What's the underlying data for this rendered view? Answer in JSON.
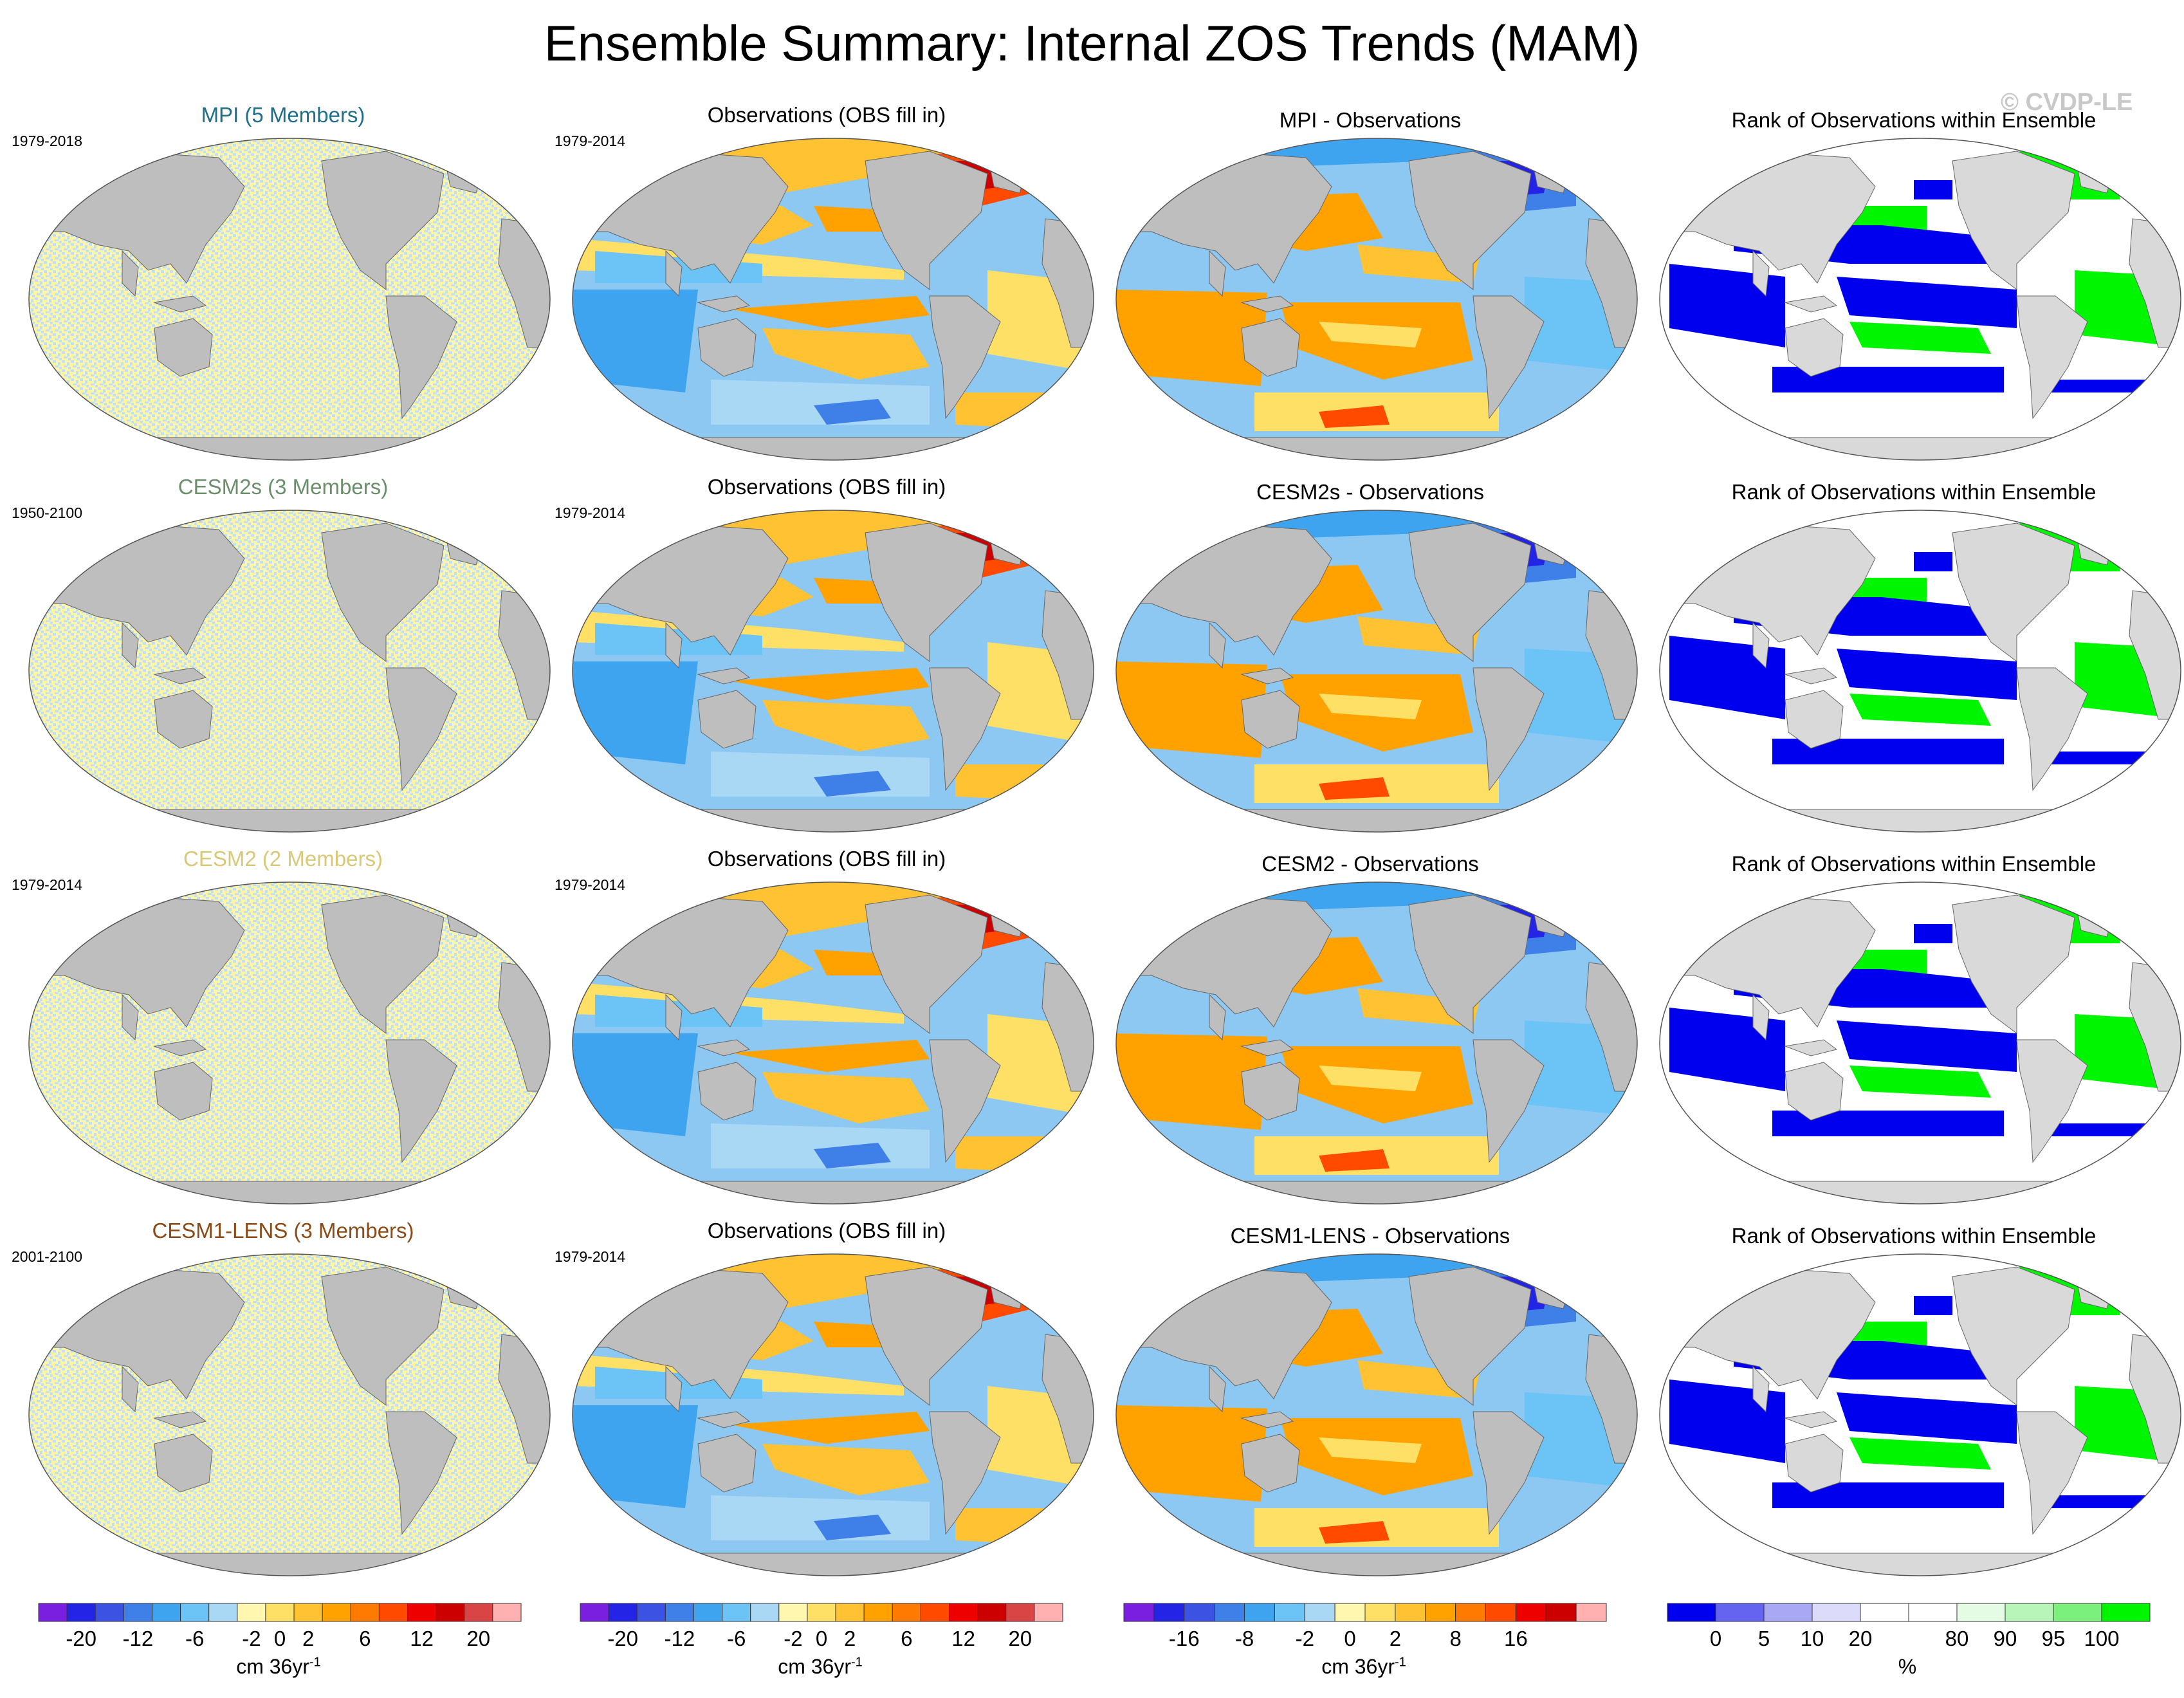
{
  "title": "Ensemble Summary: Internal ZOS Trends (MAM)",
  "watermark": "© CVDP-LE",
  "colors": {
    "land": "#bebebe",
    "land_light": "#d9d9d9",
    "pale_blue": "#bfe0f5",
    "pale_yellow": "#fff4a8",
    "rank_blue": "#0000ee",
    "rank_green": "#00f500"
  },
  "rows": [
    {
      "model": "MPI (5 Members)",
      "model_color": "#1f6f8b",
      "period": "1979-2018",
      "obs_title": "Observations (OBS fill in)",
      "obs_period": "1979-2014",
      "diff_title": "MPI - Observations",
      "rank_title": "Rank of Observations within Ensemble"
    },
    {
      "model": "CESM2s (3 Members)",
      "model_color": "#6b8f6b",
      "period": "1950-2100",
      "obs_title": "Observations (OBS fill in)",
      "obs_period": "1979-2014",
      "diff_title": "CESM2s - Observations",
      "rank_title": "Rank of Observations within Ensemble"
    },
    {
      "model": "CESM2 (2 Members)",
      "model_color": "#d8c878",
      "period": "1979-2014",
      "obs_title": "Observations (OBS fill in)",
      "obs_period": "1979-2014",
      "diff_title": "CESM2 - Observations",
      "rank_title": "Rank of Observations within Ensemble"
    },
    {
      "model": "CESM1-LENS (3 Members)",
      "model_color": "#8b4a16",
      "period": "2001-2100",
      "obs_title": "Observations (OBS fill in)",
      "obs_period": "1979-2014",
      "diff_title": "CESM1-LENS - Observations",
      "rank_title": "Rank of Observations within Ensemble"
    }
  ],
  "colorbars": [
    {
      "name": "trend",
      "colors": [
        "#7a1fe0",
        "#2424e6",
        "#3c52e2",
        "#3f7fe8",
        "#3ea4f0",
        "#6cc3f5",
        "#a9d8f4",
        "#fff7b0",
        "#ffe066",
        "#ffc233",
        "#ffa200",
        "#ff7a00",
        "#ff4a00",
        "#ee0000",
        "#cc0000",
        "#d94545",
        "#ffb0b0"
      ],
      "labels": [
        "-20",
        "-12",
        "-6",
        "-2",
        "0",
        "2",
        "6",
        "12",
        "20"
      ],
      "label_positions": [
        1.5,
        3.5,
        5.5,
        7.5,
        8.5,
        9.5,
        11.5,
        13.5,
        15.5
      ],
      "unit": "cm 36yr",
      "unit_sup": "-1"
    },
    {
      "name": "trend",
      "colors": [
        "#7a1fe0",
        "#2424e6",
        "#3c52e2",
        "#3f7fe8",
        "#3ea4f0",
        "#6cc3f5",
        "#a9d8f4",
        "#fff7b0",
        "#ffe066",
        "#ffc233",
        "#ffa200",
        "#ff7a00",
        "#ff4a00",
        "#ee0000",
        "#cc0000",
        "#d94545",
        "#ffb0b0"
      ],
      "labels": [
        "-20",
        "-12",
        "-6",
        "-2",
        "0",
        "2",
        "6",
        "12",
        "20"
      ],
      "label_positions": [
        1.5,
        3.5,
        5.5,
        7.5,
        8.5,
        9.5,
        11.5,
        13.5,
        15.5
      ],
      "unit": "cm 36yr",
      "unit_sup": "-1"
    },
    {
      "name": "difference",
      "colors": [
        "#7a1fe0",
        "#2424e6",
        "#3c52e2",
        "#3f7fe8",
        "#3ea4f0",
        "#6cc3f5",
        "#a9d8f4",
        "#fff7b0",
        "#ffe066",
        "#ffc233",
        "#ffa200",
        "#ff7a00",
        "#ff4a00",
        "#ee0000",
        "#cc0000",
        "#ffb0b0"
      ],
      "labels": [
        "-16",
        "-8",
        "-2",
        "0",
        "2",
        "8",
        "16"
      ],
      "label_positions": [
        2,
        4,
        6,
        7.5,
        9,
        11,
        13
      ],
      "unit": "cm 36yr",
      "unit_sup": "-1"
    },
    {
      "name": "rank",
      "colors": [
        "#0000ee",
        "#6464f0",
        "#a8a8f5",
        "#dcdcfa",
        "#ffffff",
        "#ffffff",
        "#e4fce4",
        "#b8f5b8",
        "#7cf07c",
        "#00f500"
      ],
      "labels": [
        "0",
        "5",
        "10",
        "20",
        "80",
        "90",
        "95",
        "100"
      ],
      "label_positions": [
        1,
        2,
        3,
        4,
        6,
        7,
        8,
        9
      ],
      "unit": "%",
      "unit_sup": ""
    }
  ]
}
